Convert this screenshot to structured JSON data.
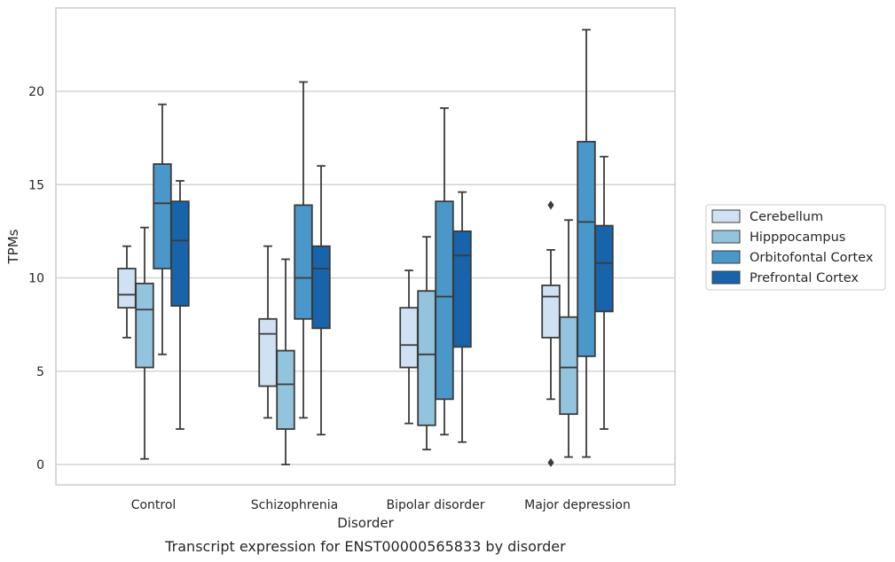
{
  "chart_data": {
    "type": "box",
    "xlabel": "Disorder",
    "ylabel": "TPMs",
    "caption": "Transcript expression for ENST00000565833 by disorder",
    "ylim": [
      -1.1,
      24.5
    ],
    "yticks": [
      0,
      5,
      10,
      15,
      20
    ],
    "grid": true,
    "legend_placement": "right",
    "categories": [
      "Control",
      "Schizophrenia",
      "Bipolar disorder",
      "Major depression"
    ],
    "series": [
      {
        "name": "Cerebellum",
        "color": "#cfe1f2",
        "boxes": [
          {
            "whislo": 6.8,
            "q1": 8.4,
            "med": 9.1,
            "q3": 10.5,
            "whishi": 11.7,
            "fliers": []
          },
          {
            "whislo": 2.5,
            "q1": 4.2,
            "med": 7.0,
            "q3": 7.8,
            "whishi": 11.7,
            "fliers": []
          },
          {
            "whislo": 2.2,
            "q1": 5.2,
            "med": 6.4,
            "q3": 8.4,
            "whishi": 10.4,
            "fliers": []
          },
          {
            "whislo": 3.5,
            "q1": 6.8,
            "med": 9.0,
            "q3": 9.6,
            "whishi": 11.5,
            "fliers": [
              13.9,
              0.1
            ]
          }
        ]
      },
      {
        "name": "Hipppocampus",
        "color": "#93c4de",
        "boxes": [
          {
            "whislo": 0.3,
            "q1": 5.2,
            "med": 8.3,
            "q3": 9.7,
            "whishi": 12.7,
            "fliers": []
          },
          {
            "whislo": 0.0,
            "q1": 1.9,
            "med": 4.3,
            "q3": 6.1,
            "whishi": 11.0,
            "fliers": []
          },
          {
            "whislo": 0.8,
            "q1": 2.1,
            "med": 5.9,
            "q3": 9.3,
            "whishi": 12.2,
            "fliers": []
          },
          {
            "whislo": 0.4,
            "q1": 2.7,
            "med": 5.2,
            "q3": 7.9,
            "whishi": 13.1,
            "fliers": []
          }
        ]
      },
      {
        "name": "Orbitofontal Cortex",
        "color": "#4a98c9",
        "boxes": [
          {
            "whislo": 5.9,
            "q1": 10.5,
            "med": 14.0,
            "q3": 16.1,
            "whishi": 19.3,
            "fliers": []
          },
          {
            "whislo": 2.5,
            "q1": 7.8,
            "med": 10.0,
            "q3": 13.9,
            "whishi": 20.5,
            "fliers": []
          },
          {
            "whislo": 1.6,
            "q1": 3.5,
            "med": 9.0,
            "q3": 14.1,
            "whishi": 19.1,
            "fliers": []
          },
          {
            "whislo": 0.4,
            "q1": 5.8,
            "med": 13.0,
            "q3": 17.3,
            "whishi": 23.3,
            "fliers": []
          }
        ]
      },
      {
        "name": "Prefrontal Cortex",
        "color": "#1764ab",
        "boxes": [
          {
            "whislo": 1.9,
            "q1": 8.5,
            "med": 12.0,
            "q3": 14.1,
            "whishi": 15.2,
            "fliers": []
          },
          {
            "whislo": 1.6,
            "q1": 7.3,
            "med": 10.5,
            "q3": 11.7,
            "whishi": 16.0,
            "fliers": []
          },
          {
            "whislo": 1.2,
            "q1": 6.3,
            "med": 11.2,
            "q3": 12.5,
            "whishi": 14.6,
            "fliers": []
          },
          {
            "whislo": 1.9,
            "q1": 8.2,
            "med": 10.8,
            "q3": 12.8,
            "whishi": 16.5,
            "fliers": []
          }
        ]
      }
    ]
  }
}
